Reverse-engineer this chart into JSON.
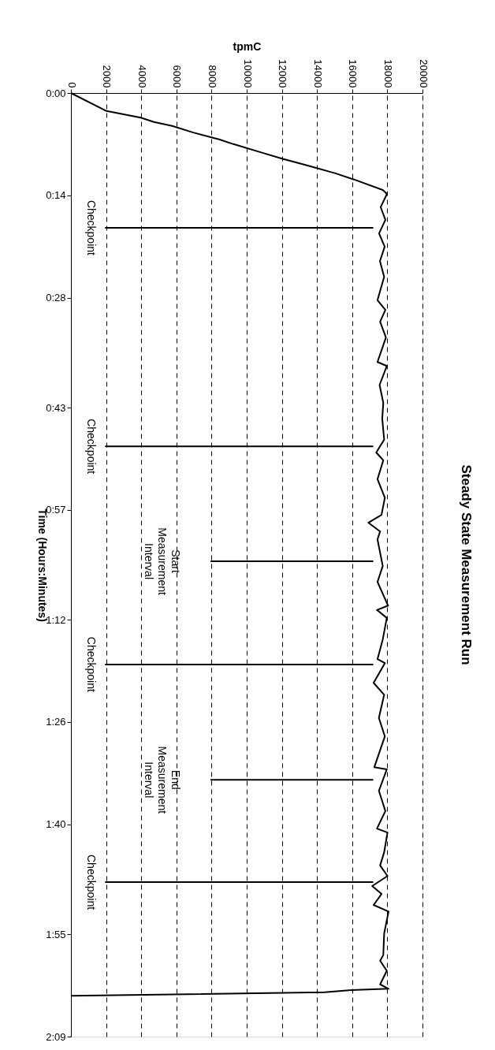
{
  "chart_data": {
    "type": "line",
    "title": "Steady State Measurement Run",
    "xlabel": "tpmC",
    "ylabel": "Time (Hours:Minutes)",
    "x": [
      0,
      2020,
      3970,
      4720,
      5760,
      6960,
      8460,
      9210,
      10710,
      12050,
      13550,
      15050,
      16100,
      17740,
      17980,
      17620,
      17890,
      17530,
      17850,
      17580,
      17820,
      17440,
      17890,
      17590,
      17920,
      17440,
      17970,
      17560,
      17770,
      17710,
      17820,
      17370,
      17770,
      17440,
      17860,
      17670,
      16920,
      17590,
      17440,
      17740,
      17440,
      18040,
      17410,
      17970,
      17740,
      17440,
      17860,
      17220,
      17820,
      17520,
      17860,
      17260,
      17970,
      17520,
      17890,
      17410,
      18010,
      17820,
      17590,
      18010,
      17140,
      17670,
      17220,
      18070,
      17820,
      17770,
      17590,
      17970,
      17590,
      18070,
      15950,
      14430,
      0
    ],
    "series": [
      {
        "color": "#000000",
        "values": [
          0,
          0.041,
          0.056,
          0.066,
          0.075,
          0.09,
          0.106,
          0.116,
          0.134,
          0.15,
          0.166,
          0.183,
          0.197,
          0.221,
          0.23,
          0.26,
          0.289,
          0.32,
          0.35,
          0.383,
          0.419,
          0.472,
          0.494,
          0.521,
          0.557,
          0.613,
          0.622,
          0.665,
          0.706,
          0.742,
          0.79,
          0.819,
          0.837,
          0.88,
          0.922,
          0.961,
          0.979,
          0.999,
          1.017,
          1.078,
          1.114,
          1.168,
          1.178,
          1.196,
          1.245,
          1.29,
          1.299,
          1.344,
          1.371,
          1.424,
          1.466,
          1.536,
          1.541,
          1.59,
          1.636,
          1.676,
          1.685,
          1.73,
          1.76,
          1.784,
          1.807,
          1.825,
          1.85,
          1.865,
          1.915,
          1.964,
          1.977,
          2.0,
          2.031,
          2.041,
          2.044,
          2.049,
          2.057
        ]
      }
    ],
    "xlim": [
      0,
      20000
    ],
    "xticks": [
      0,
      2000,
      4000,
      6000,
      8000,
      10000,
      12000,
      14000,
      16000,
      18000,
      20000
    ],
    "ylim": [
      2.15,
      0
    ],
    "yticks": [
      {
        "value": 0,
        "label": "0:00"
      },
      {
        "value": 0.2333,
        "label": "0:14"
      },
      {
        "value": 0.4667,
        "label": "0:28"
      },
      {
        "value": 0.7167,
        "label": "0:43"
      },
      {
        "value": 0.95,
        "label": "0:57"
      },
      {
        "value": 1.2,
        "label": "1:12"
      },
      {
        "value": 1.4333,
        "label": "1:26"
      },
      {
        "value": 1.6667,
        "label": "1:40"
      },
      {
        "value": 1.9167,
        "label": "1:55"
      },
      {
        "value": 2.15,
        "label": "2:09"
      }
    ],
    "grid": "x",
    "marker": "none",
    "line_style": "solid",
    "ref_lines": [
      {
        "axis": "y",
        "value": 0.307,
        "label": "Checkpoint"
      },
      {
        "axis": "y",
        "value": 0.805,
        "label": "Checkpoint"
      },
      {
        "axis": "y",
        "value": 1.067,
        "label": "Start Measurement Interval"
      },
      {
        "axis": "y",
        "value": 1.302,
        "label": "Checkpoint"
      },
      {
        "axis": "y",
        "value": 1.565,
        "label": "End Measurement Interval"
      },
      {
        "axis": "y",
        "value": 1.798,
        "label": "Checkpoint"
      }
    ]
  }
}
